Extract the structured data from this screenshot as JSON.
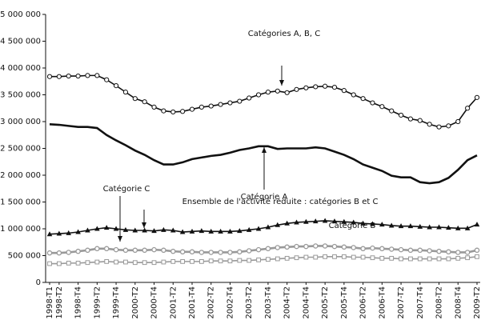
{
  "chart_data": {
    "type": "line",
    "categories": [
      "1998-T1",
      "1998-T2",
      null,
      "1998-T4",
      null,
      "1999-T2",
      null,
      "1999-T4",
      null,
      "2000-T2",
      null,
      "2000-T4",
      null,
      "2001-T2",
      null,
      "2001-T4",
      null,
      "2002-T2",
      null,
      "2002-T4",
      null,
      "2003-T2",
      null,
      "2003-T4",
      null,
      "2004-T2",
      null,
      "2004-T4",
      null,
      "2005-T2",
      null,
      "2005-T4",
      null,
      "2006-T2",
      null,
      "2006-T4",
      null,
      "2007-T2",
      null,
      "2007-T4",
      null,
      "2008-T2",
      null,
      "2008-T4",
      null,
      "2009-T2"
    ],
    "ylim": [
      0,
      5000000
    ],
    "yticks": [
      0,
      {
        "value": 500000,
        "label": "500 000"
      },
      {
        "value": 1000000,
        "label": "1 000 000"
      },
      {
        "value": 1500000,
        "label": "1 500 000"
      },
      {
        "value": 2000000,
        "label": "2 000 000"
      },
      {
        "value": 2500000,
        "label": "2 500 000"
      },
      {
        "value": 3000000,
        "label": "3 000 000"
      },
      {
        "value": 3500000,
        "label": "3 500 000"
      },
      {
        "value": 4000000,
        "label": "4 000 000"
      },
      {
        "value": 4500000,
        "label": "4 500 000"
      },
      {
        "value": 5000000,
        "label": "5 000 000"
      }
    ],
    "grid": false,
    "series": [
      {
        "name": "Catégories A, B, C",
        "color": "#111111",
        "marker": "circle-open",
        "values": [
          3840000,
          3840000,
          3850000,
          3850000,
          3860000,
          3860000,
          3780000,
          3670000,
          3550000,
          3430000,
          3370000,
          3270000,
          3200000,
          3180000,
          3190000,
          3230000,
          3270000,
          3290000,
          3320000,
          3350000,
          3380000,
          3440000,
          3500000,
          3550000,
          3570000,
          3540000,
          3600000,
          3630000,
          3650000,
          3660000,
          3640000,
          3580000,
          3500000,
          3430000,
          3350000,
          3280000,
          3200000,
          3120000,
          3050000,
          3020000,
          2950000,
          2900000,
          2920000,
          3000000,
          3250000,
          3450000
        ]
      },
      {
        "name": "Catégorie A",
        "color": "#111111",
        "marker": "none",
        "values": [
          2950000,
          2940000,
          2920000,
          2900000,
          2900000,
          2880000,
          2750000,
          2650000,
          2560000,
          2460000,
          2380000,
          2280000,
          2200000,
          2200000,
          2240000,
          2300000,
          2330000,
          2360000,
          2380000,
          2420000,
          2470000,
          2500000,
          2540000,
          2540000,
          2490000,
          2500000,
          2500000,
          2500000,
          2520000,
          2500000,
          2440000,
          2380000,
          2300000,
          2200000,
          2140000,
          2080000,
          1990000,
          1960000,
          1960000,
          1870000,
          1850000,
          1870000,
          1950000,
          2100000,
          2280000,
          2370000
        ]
      },
      {
        "name": "Ensemble de l'activité réduite : catégories B et C",
        "color": "#111111",
        "marker": "triangle",
        "values": [
          900000,
          910000,
          920000,
          940000,
          970000,
          1000000,
          1020000,
          1000000,
          980000,
          970000,
          970000,
          960000,
          980000,
          970000,
          940000,
          950000,
          960000,
          950000,
          950000,
          950000,
          960000,
          980000,
          1000000,
          1030000,
          1070000,
          1100000,
          1120000,
          1130000,
          1140000,
          1150000,
          1140000,
          1130000,
          1120000,
          1100000,
          1090000,
          1080000,
          1060000,
          1050000,
          1050000,
          1040000,
          1030000,
          1030000,
          1020000,
          1010000,
          1010000,
          1080000
        ]
      },
      {
        "name": "Catégorie C",
        "color": "#999999",
        "marker": "circle-gray",
        "values": [
          550000,
          550000,
          560000,
          580000,
          600000,
          630000,
          630000,
          610000,
          600000,
          600000,
          600000,
          610000,
          600000,
          580000,
          570000,
          570000,
          560000,
          560000,
          560000,
          560000,
          570000,
          590000,
          610000,
          630000,
          650000,
          660000,
          670000,
          670000,
          680000,
          680000,
          670000,
          660000,
          650000,
          630000,
          640000,
          630000,
          620000,
          610000,
          600000,
          600000,
          590000,
          580000,
          570000,
          560000,
          560000,
          600000
        ]
      },
      {
        "name": "Catégorie B",
        "color": "#999999",
        "marker": "square-open",
        "values": [
          350000,
          350000,
          360000,
          360000,
          370000,
          380000,
          390000,
          380000,
          380000,
          370000,
          370000,
          370000,
          380000,
          390000,
          390000,
          390000,
          390000,
          400000,
          400000,
          400000,
          410000,
          410000,
          420000,
          430000,
          440000,
          450000,
          460000,
          470000,
          470000,
          480000,
          480000,
          480000,
          470000,
          470000,
          460000,
          450000,
          450000,
          440000,
          440000,
          440000,
          440000,
          440000,
          440000,
          450000,
          460000,
          480000
        ]
      }
    ]
  }
}
